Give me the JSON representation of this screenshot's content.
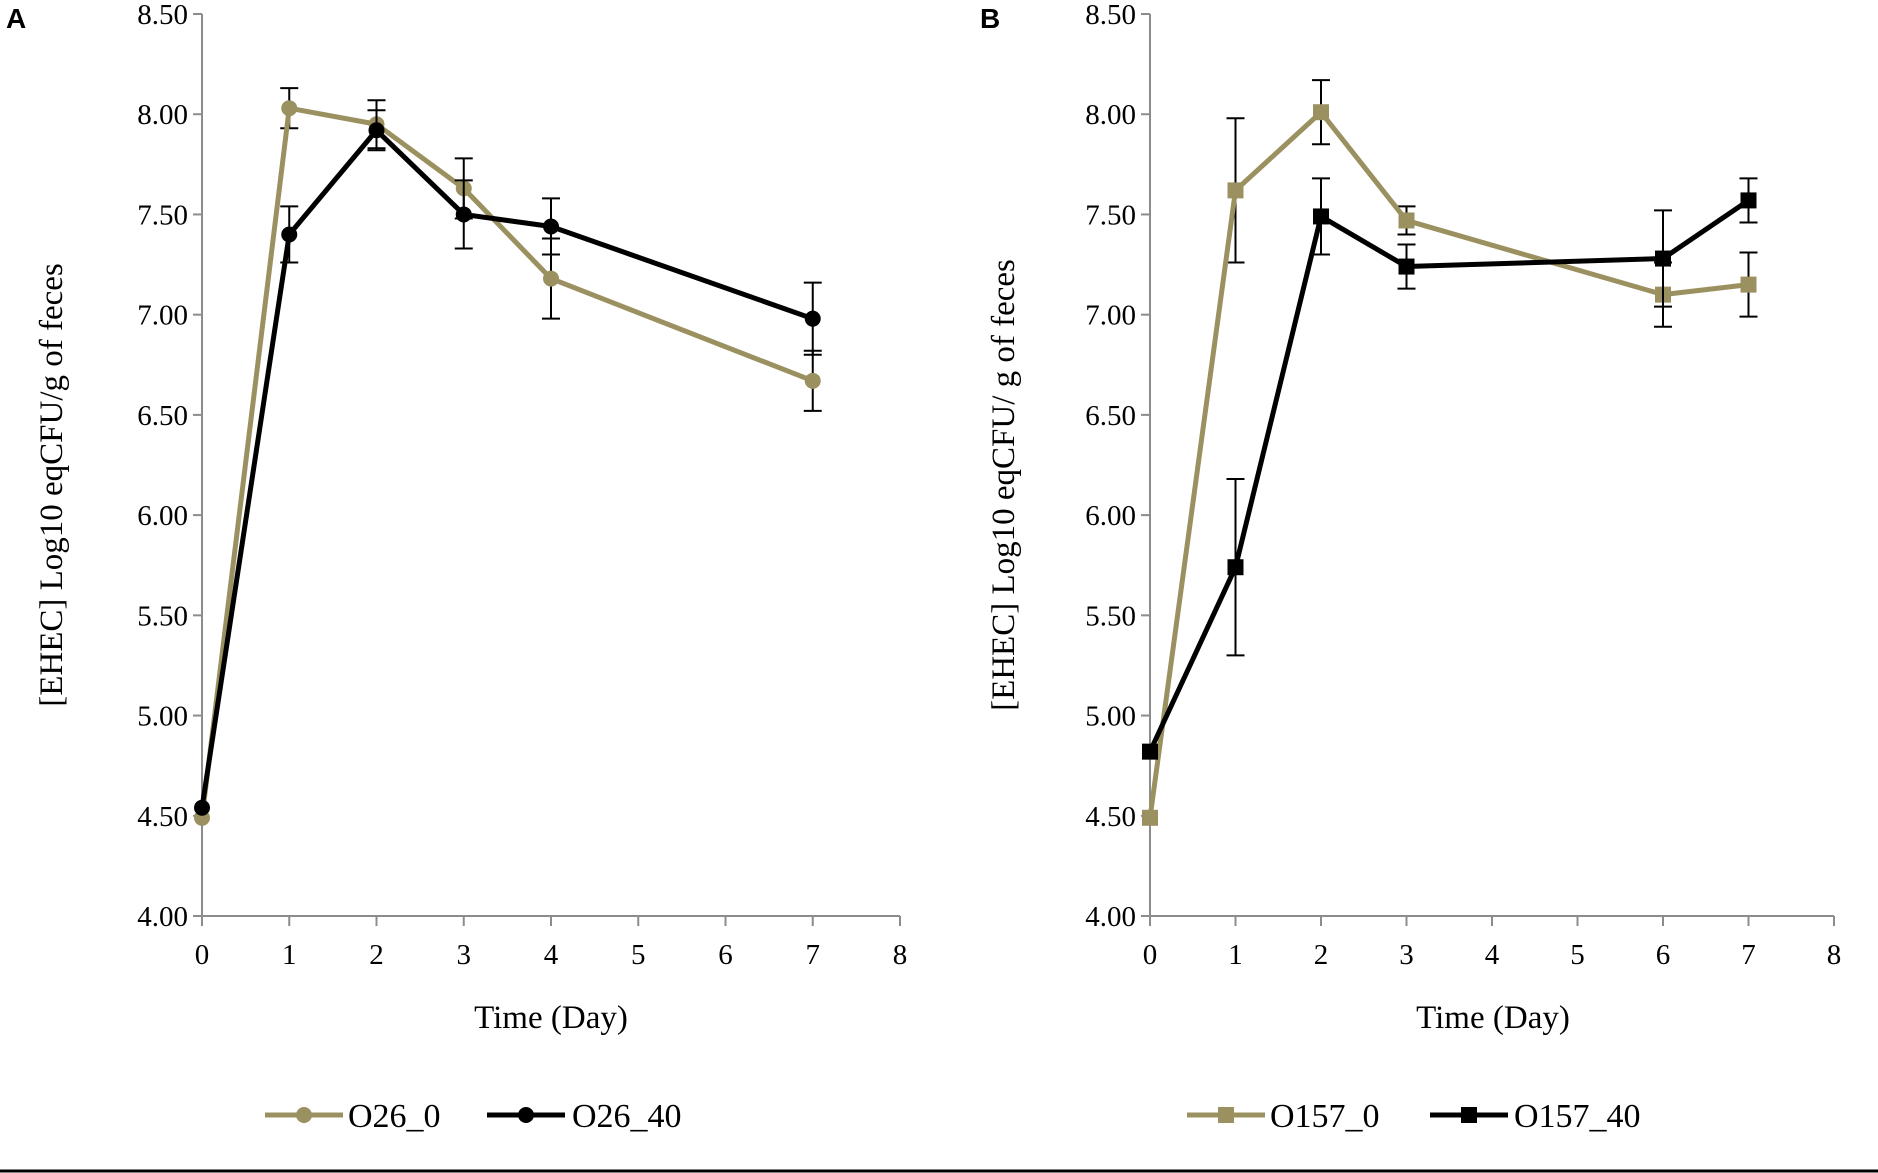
{
  "colors": {
    "olive": "#9b9160",
    "black": "#000000",
    "axis": "#8c8c8c"
  },
  "chart_data": [
    {
      "type": "line",
      "panel_label": "A",
      "marker": "circle",
      "xlabel": "Time (Day)",
      "ylabel": "[EHEC] Log10 eqCFU/g of feces",
      "xlim": [
        0,
        8
      ],
      "ylim": [
        4.0,
        8.5
      ],
      "xticks": [
        0,
        1,
        2,
        3,
        4,
        5,
        6,
        7,
        8
      ],
      "yticks": [
        "4.00",
        "4.50",
        "5.00",
        "5.50",
        "6.00",
        "6.50",
        "7.00",
        "7.50",
        "8.00",
        "8.50"
      ],
      "legend_position": "bottom",
      "series": [
        {
          "name": "O26_0",
          "color": "olive",
          "x": [
            0,
            1,
            2,
            3,
            4,
            7
          ],
          "y": [
            4.49,
            8.03,
            7.95,
            7.63,
            7.18,
            6.67
          ],
          "err": [
            0,
            0.1,
            0.12,
            0.15,
            0.2,
            0.15
          ]
        },
        {
          "name": "O26_40",
          "color": "black",
          "x": [
            0,
            1,
            2,
            3,
            4,
            7
          ],
          "y": [
            4.54,
            7.4,
            7.92,
            7.5,
            7.44,
            6.98
          ],
          "err": [
            0,
            0.14,
            0.1,
            0.17,
            0.14,
            0.18
          ]
        }
      ]
    },
    {
      "type": "line",
      "panel_label": "B",
      "marker": "square",
      "xlabel": "Time (Day)",
      "ylabel": "[EHEC] Log10 eqCFU/ g of feces",
      "xlim": [
        0,
        8
      ],
      "ylim": [
        4.0,
        8.5
      ],
      "xticks": [
        0,
        1,
        2,
        3,
        4,
        5,
        6,
        7,
        8
      ],
      "yticks": [
        "4.00",
        "4.50",
        "5.00",
        "5.50",
        "6.00",
        "6.50",
        "7.00",
        "7.50",
        "8.00",
        "8.50"
      ],
      "legend_position": "bottom",
      "series": [
        {
          "name": "O157_0",
          "color": "olive",
          "x": [
            0,
            1,
            2,
            3,
            6,
            7
          ],
          "y": [
            4.49,
            7.62,
            8.01,
            7.47,
            7.1,
            7.15
          ],
          "err": [
            0,
            0.36,
            0.16,
            0.07,
            0.16,
            0.16
          ]
        },
        {
          "name": "O157_40",
          "color": "black",
          "x": [
            0,
            1,
            2,
            3,
            6,
            7
          ],
          "y": [
            4.82,
            5.74,
            7.49,
            7.24,
            7.28,
            7.57
          ],
          "err": [
            0,
            0.44,
            0.19,
            0.11,
            0.24,
            0.11
          ]
        }
      ]
    }
  ]
}
